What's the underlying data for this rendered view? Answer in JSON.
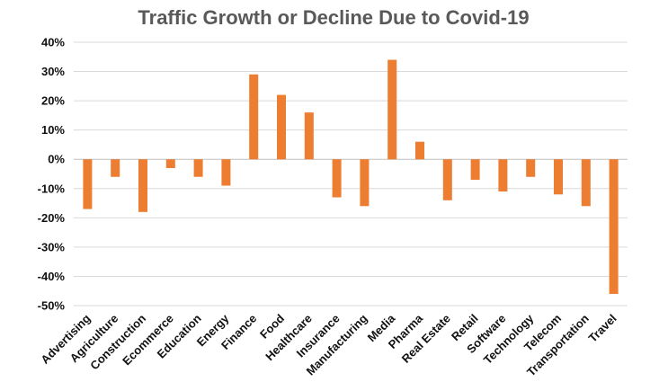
{
  "chart_data": {
    "type": "bar",
    "title": "Traffic Growth or Decline Due to Covid-19",
    "xlabel": "",
    "ylabel": "",
    "ylim": [
      -50,
      40
    ],
    "y_ticks": [
      40,
      30,
      20,
      10,
      0,
      -10,
      -20,
      -30,
      -40,
      -50
    ],
    "y_tick_labels": [
      "40%",
      "30%",
      "20%",
      "10%",
      "0%",
      "-10%",
      "-20%",
      "-30%",
      "-40%",
      "-50%"
    ],
    "grid": true,
    "legend": "none",
    "bar_color": "#ED7D31",
    "categories": [
      "Advertising",
      "Agriculture",
      "Construction",
      "Ecommerce",
      "Education",
      "Energy",
      "Finance",
      "Food",
      "Healthcare",
      "Insurance",
      "Manufacturing",
      "Media",
      "Pharma",
      "Real Estate",
      "Retail",
      "Software",
      "Technology",
      "Telecom",
      "Transportation",
      "Travel"
    ],
    "values": [
      -17,
      -6,
      -18,
      -3,
      -6,
      -9,
      29,
      22,
      16,
      -13,
      -16,
      34,
      6,
      -14,
      -7,
      -11,
      -6,
      -12,
      -16,
      -46
    ]
  }
}
